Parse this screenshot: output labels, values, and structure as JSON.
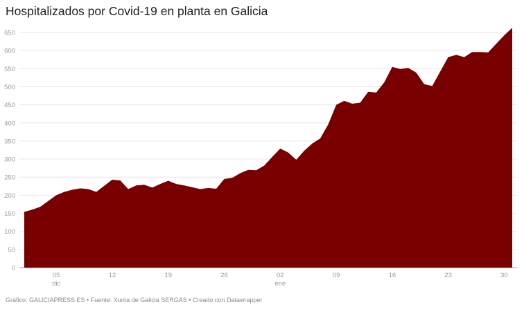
{
  "title": "Hospitalizados por Covid-19 en planta en Galicia",
  "footer": "Gráfico: GALICIAPRESS.ES • Fuente: Xunta de Galicia SERGAS • Creado con Datawrapper",
  "colors": {
    "area": "#780000",
    "grid": "#e6e6e6",
    "axis": "#999999",
    "tick_text": "#999999",
    "title": "#222222"
  },
  "chart_data": {
    "type": "area",
    "title": "Hospitalizados por Covid-19 en planta en Galicia",
    "xlabel": "",
    "ylabel": "",
    "ylim": [
      0,
      650
    ],
    "grid": true,
    "legend": null,
    "y_ticks": [
      0,
      50,
      100,
      150,
      200,
      250,
      300,
      350,
      400,
      450,
      500,
      550,
      600,
      650
    ],
    "x_ticks": [
      {
        "day_index": 4,
        "label": "05",
        "sublabel": "dic"
      },
      {
        "day_index": 11,
        "label": "12",
        "sublabel": ""
      },
      {
        "day_index": 18,
        "label": "19",
        "sublabel": ""
      },
      {
        "day_index": 25,
        "label": "26",
        "sublabel": ""
      },
      {
        "day_index": 32,
        "label": "02",
        "sublabel": "ene"
      },
      {
        "day_index": 39,
        "label": "09",
        "sublabel": ""
      },
      {
        "day_index": 46,
        "label": "16",
        "sublabel": ""
      },
      {
        "day_index": 53,
        "label": "23",
        "sublabel": ""
      },
      {
        "day_index": 60,
        "label": "30",
        "sublabel": ""
      }
    ],
    "x": [
      "01 dic",
      "02 dic",
      "03 dic",
      "04 dic",
      "05 dic",
      "06 dic",
      "07 dic",
      "08 dic",
      "09 dic",
      "10 dic",
      "11 dic",
      "12 dic",
      "13 dic",
      "14 dic",
      "15 dic",
      "16 dic",
      "17 dic",
      "18 dic",
      "19 dic",
      "20 dic",
      "21 dic",
      "22 dic",
      "23 dic",
      "24 dic",
      "25 dic",
      "26 dic",
      "27 dic",
      "28 dic",
      "29 dic",
      "30 dic",
      "31 dic",
      "01 ene",
      "02 ene",
      "03 ene",
      "04 ene",
      "05 ene",
      "06 ene",
      "07 ene",
      "08 ene",
      "09 ene",
      "10 ene",
      "11 ene",
      "12 ene",
      "13 ene",
      "14 ene",
      "15 ene",
      "16 ene",
      "17 ene",
      "18 ene",
      "19 ene",
      "20 ene",
      "21 ene",
      "22 ene",
      "23 ene",
      "24 ene",
      "25 ene",
      "26 ene",
      "27 ene",
      "28 ene",
      "29 ene",
      "30 ene",
      "31 ene"
    ],
    "values": [
      154,
      160,
      168,
      184,
      200,
      209,
      215,
      219,
      217,
      209,
      226,
      243,
      241,
      217,
      227,
      229,
      221,
      231,
      240,
      231,
      227,
      222,
      217,
      220,
      218,
      245,
      248,
      261,
      270,
      269,
      282,
      306,
      329,
      318,
      298,
      323,
      343,
      357,
      396,
      450,
      461,
      453,
      456,
      486,
      484,
      512,
      555,
      549,
      552,
      539,
      507,
      502,
      542,
      582,
      588,
      582,
      596,
      596,
      595,
      619,
      642,
      663
    ]
  }
}
